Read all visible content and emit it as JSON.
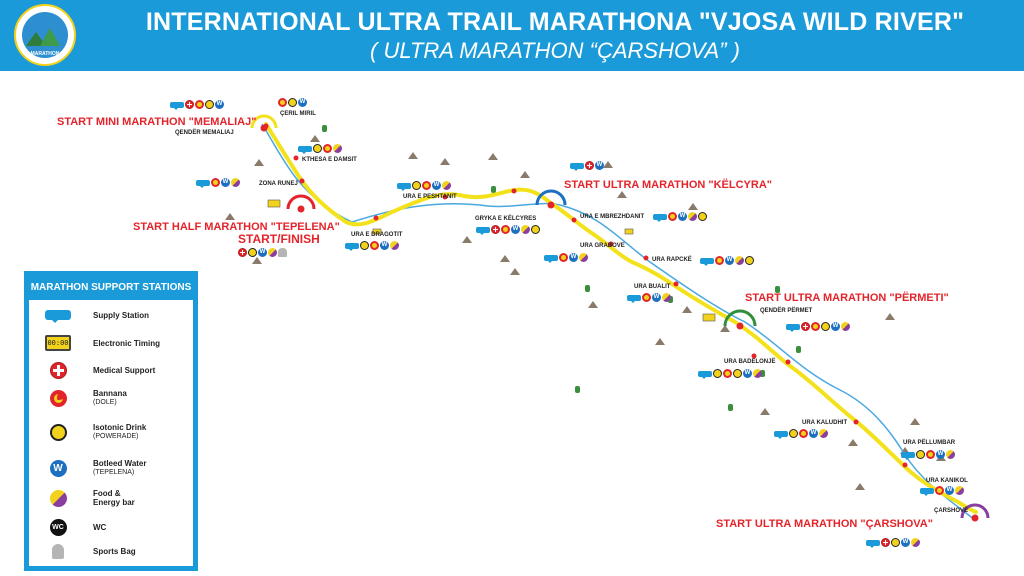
{
  "header": {
    "title": "INTERNATIONAL ULTRA TRAIL MARATHONA \"VJOSA WILD RIVER\"",
    "subtitle": "( ULTRA MARATHON “ÇARSHOVA”  )",
    "logo_text": "MARATHON"
  },
  "colors": {
    "header": "#1a9ad8",
    "route": "#f3e21b",
    "start_text": "#e3242b",
    "checkpoint": "#e3242b"
  },
  "starts": {
    "mini": "START MINI MARATHON \"MEMALIAJ\"",
    "half": "START HALF MARATHON \"TEPELENA\"",
    "start_finish": "START/FINISH",
    "kelcyra": "START ULTRA MARATHON \"KËLCYRA\"",
    "permeti": "START ULTRA MARATHON \"PËRMETI\"",
    "carshova": "START ULTRA MARATHON \"ÇARSHOVA\""
  },
  "places": {
    "qender_memaliaj": "QENDËR MEMALIAJ",
    "ceril_miril": "ÇERIL MIRIL",
    "kthesa_damsit": "KTHESA E DAMSIT",
    "zona_runej": "ZONA RUNEJ",
    "ura_dragotit": "URA E DRAGOTIT",
    "ura_peshtanit": "URA E PESHTANIT",
    "gryka_kelcyres": "GRYKA E KËLCYRES",
    "ura_mbrezhdanit": "URA E MBREZHDANIT",
    "ura_grabove": "URA GRABOVE",
    "ura_rapcke": "URA RAPCKË",
    "ura_bualit": "URA BUALIT",
    "qender_permet": "QENDËR PËRMET",
    "ura_badelonje": "URA BADELONJË",
    "ura_kaludhit": "URA KALUDHIT",
    "ura_pellumbar": "URA PËLLUMBAR",
    "ura_kanikol": "URA KANIKOL",
    "carshove": "ÇARSHOVË"
  },
  "legend": {
    "title": "MARATHON SUPPORT STATIONS",
    "supply": "Supply Station",
    "timing": "Electronic Timing",
    "timing_display": "00:00",
    "medical": "Medical Support",
    "banana": "Bannana",
    "banana_sub": "(DOLE)",
    "iso": "Isotonic Drink",
    "iso_sub": "(POWERADE)",
    "water": "Botleed Water",
    "water_sub": "(TEPELENA)",
    "water_glyph": "W",
    "food": "Food  &",
    "food2": "Energy bar",
    "wc": "WC",
    "wc_glyph": "WC",
    "bag": "Sports Bag"
  },
  "icon_glyphs": {
    "water": "W",
    "wc": "WC"
  }
}
